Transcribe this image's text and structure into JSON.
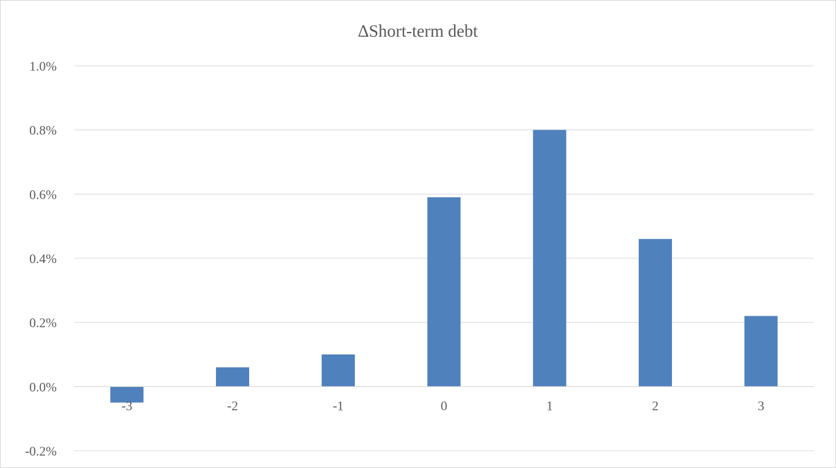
{
  "chart_data": {
    "type": "bar",
    "title": "∆Short-term debt",
    "categories": [
      "-3",
      "-2",
      "-1",
      "0",
      "1",
      "2",
      "3"
    ],
    "series": [
      {
        "values": [
          -0.05,
          0.06,
          0.1,
          0.59,
          0.8,
          0.46,
          0.22
        ]
      }
    ],
    "value_unit": "%",
    "ylim": [
      -0.2,
      1.0
    ],
    "yticks": [
      -0.2,
      0.0,
      0.2,
      0.4,
      0.6,
      0.8,
      1.0
    ],
    "ytick_labels": [
      "-0.2%",
      "0.0%",
      "0.2%",
      "0.4%",
      "0.6%",
      "0.8%",
      "1.0%"
    ],
    "xlabel": "",
    "ylabel": "",
    "grid": true,
    "legend": "none",
    "bar_color": "#4f81bd"
  }
}
